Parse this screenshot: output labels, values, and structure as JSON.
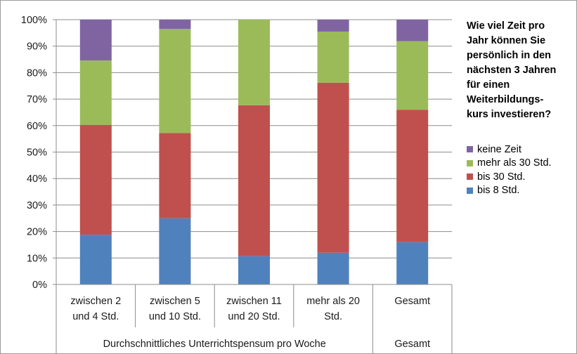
{
  "chart_data": {
    "type": "bar",
    "stacked": true,
    "percent": true,
    "categories": [
      "zwischen 2\nund 4 Std.",
      "zwischen 5\nund 10 Std.",
      "zwischen 11\nund 20 Std.",
      "mehr als 20\nStd.",
      "Gesamt"
    ],
    "groups": [
      {
        "label": "Durchschnittliches Unterrichtspensum pro Woche",
        "categories": [
          0,
          1,
          2,
          3
        ]
      },
      {
        "label": "Gesamt",
        "categories": [
          4
        ]
      }
    ],
    "series": [
      {
        "name": "bis 8 Std.",
        "color": "#4f81bd",
        "values": [
          18.8,
          25.0,
          10.7,
          12.0,
          16.0
        ]
      },
      {
        "name": "bis 30 Std.",
        "color": "#c0504d",
        "values": [
          41.5,
          32.2,
          57.0,
          64.2,
          50.0
        ]
      },
      {
        "name": "mehr als 30 Std.",
        "color": "#9bbb59",
        "values": [
          24.3,
          39.3,
          32.3,
          19.3,
          25.9
        ]
      },
      {
        "name": "keine Zeit",
        "color": "#8064a2",
        "values": [
          15.4,
          3.5,
          0.0,
          4.5,
          8.1
        ]
      }
    ],
    "yticks": [
      "0%",
      "10%",
      "20%",
      "30%",
      "40%",
      "50%",
      "60%",
      "70%",
      "80%",
      "90%",
      "100%"
    ],
    "ylim": [
      0,
      100
    ],
    "grid": true,
    "legend_title": "Wie viel Zeit pro Jahr können Sie persönlich in den nächsten 3 Jahren für einen Weiterbildungs-kurs investieren?",
    "legend_title_lines": [
      "Wie viel Zeit pro",
      "Jahr können Sie",
      "persönlich in den",
      "nächsten 3 Jahren",
      "für einen",
      "Weiterbildungs-",
      "kurs investieren?"
    ],
    "legend_position": "right",
    "legend_order": [
      3,
      2,
      1,
      0
    ]
  }
}
